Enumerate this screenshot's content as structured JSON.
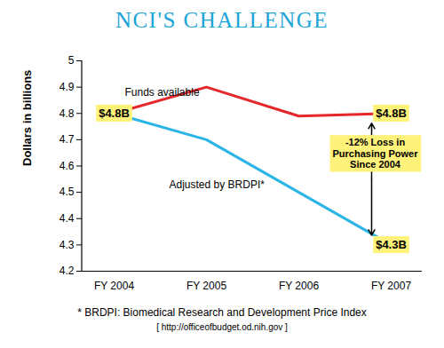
{
  "chart_data": {
    "type": "line",
    "title": "NCI'S CHALLENGE",
    "y_label": "Dollars in billions",
    "categories": [
      "FY 2004",
      "FY 2005",
      "FY 2006",
      "FY 2007"
    ],
    "series": [
      {
        "name": "Funds available",
        "color": "#e5262b",
        "values": [
          4.8,
          4.9,
          4.79,
          4.8
        ],
        "value_labels": [
          "$4.8B",
          null,
          null,
          "$4.8B"
        ]
      },
      {
        "name": "Adjusted by BRDPI*",
        "color": "#2bb5e6",
        "values": [
          4.8,
          4.7,
          4.5,
          4.3
        ],
        "value_labels": [
          null,
          null,
          null,
          "$4.3B"
        ]
      }
    ],
    "ylim": [
      4.2,
      5
    ],
    "yticks": [
      4.2,
      4.3,
      4.4,
      4.5,
      4.6,
      4.7,
      4.8,
      4.9,
      5
    ],
    "grid": false,
    "data_labels": true,
    "annotations": [
      {
        "text": "-12% Loss in\nPurchasing Power\nSince 2004"
      }
    ],
    "caption": "* BRDPI: Biomedical Research and Development Price Index",
    "source": "[ http://officeofbudget.od.nih.gov ]"
  }
}
